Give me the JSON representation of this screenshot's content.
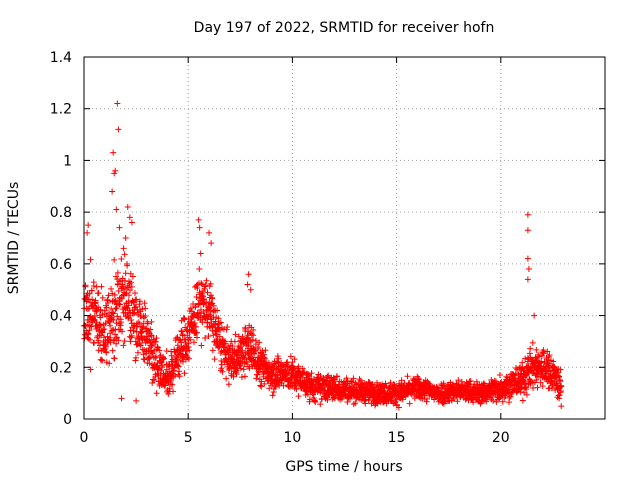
{
  "chart_data": {
    "type": "scatter",
    "title": "Day 197 of 2022, SRMTID for receiver hofn",
    "xlabel": "GPS time / hours",
    "ylabel": "SRMTID / TECUs",
    "xlim": [
      0,
      25
    ],
    "ylim": [
      0,
      1.4
    ],
    "x_ticks": [
      0,
      5,
      10,
      15,
      20
    ],
    "y_ticks": [
      0,
      0.2,
      0.4,
      0.6,
      0.8,
      1,
      1.2,
      1.4
    ],
    "x_tick_labels": [
      "0",
      "5",
      "10",
      "15",
      "20"
    ],
    "y_tick_labels": [
      "0",
      "0.2",
      "0.4",
      "0.6",
      "0.8",
      "1",
      "1.2",
      "1.4"
    ],
    "grid": true,
    "marker": "+",
    "color": "#ff0000",
    "series": [
      {
        "name": "SRMTID",
        "profile": [
          {
            "x": 0.0,
            "y": 0.42,
            "spread": 0.16
          },
          {
            "x": 0.5,
            "y": 0.4,
            "spread": 0.15
          },
          {
            "x": 1.0,
            "y": 0.33,
            "spread": 0.13
          },
          {
            "x": 1.5,
            "y": 0.4,
            "spread": 0.18
          },
          {
            "x": 2.0,
            "y": 0.5,
            "spread": 0.18
          },
          {
            "x": 2.5,
            "y": 0.38,
            "spread": 0.14
          },
          {
            "x": 3.0,
            "y": 0.32,
            "spread": 0.12
          },
          {
            "x": 3.5,
            "y": 0.22,
            "spread": 0.1
          },
          {
            "x": 4.0,
            "y": 0.15,
            "spread": 0.08
          },
          {
            "x": 4.5,
            "y": 0.25,
            "spread": 0.1
          },
          {
            "x": 5.0,
            "y": 0.32,
            "spread": 0.1
          },
          {
            "x": 5.5,
            "y": 0.45,
            "spread": 0.12
          },
          {
            "x": 6.0,
            "y": 0.42,
            "spread": 0.12
          },
          {
            "x": 6.5,
            "y": 0.3,
            "spread": 0.1
          },
          {
            "x": 7.0,
            "y": 0.22,
            "spread": 0.08
          },
          {
            "x": 7.5,
            "y": 0.25,
            "spread": 0.08
          },
          {
            "x": 8.0,
            "y": 0.28,
            "spread": 0.1
          },
          {
            "x": 8.5,
            "y": 0.2,
            "spread": 0.07
          },
          {
            "x": 9.0,
            "y": 0.18,
            "spread": 0.07
          },
          {
            "x": 10.0,
            "y": 0.17,
            "spread": 0.06
          },
          {
            "x": 11.0,
            "y": 0.12,
            "spread": 0.05
          },
          {
            "x": 12.0,
            "y": 0.12,
            "spread": 0.05
          },
          {
            "x": 13.0,
            "y": 0.11,
            "spread": 0.04
          },
          {
            "x": 14.0,
            "y": 0.1,
            "spread": 0.04
          },
          {
            "x": 15.0,
            "y": 0.1,
            "spread": 0.04
          },
          {
            "x": 16.0,
            "y": 0.12,
            "spread": 0.04
          },
          {
            "x": 17.0,
            "y": 0.1,
            "spread": 0.04
          },
          {
            "x": 18.0,
            "y": 0.11,
            "spread": 0.04
          },
          {
            "x": 19.0,
            "y": 0.1,
            "spread": 0.04
          },
          {
            "x": 20.0,
            "y": 0.12,
            "spread": 0.05
          },
          {
            "x": 21.0,
            "y": 0.15,
            "spread": 0.06
          },
          {
            "x": 21.5,
            "y": 0.2,
            "spread": 0.08
          },
          {
            "x": 22.0,
            "y": 0.2,
            "spread": 0.08
          },
          {
            "x": 22.5,
            "y": 0.18,
            "spread": 0.07
          },
          {
            "x": 22.9,
            "y": 0.12,
            "spread": 0.06
          }
        ],
        "outliers": [
          [
            1.6,
            1.22
          ],
          [
            1.65,
            1.12
          ],
          [
            1.4,
            1.03
          ],
          [
            1.5,
            0.96
          ],
          [
            1.45,
            0.95
          ],
          [
            1.35,
            0.88
          ],
          [
            1.55,
            0.81
          ],
          [
            2.1,
            0.82
          ],
          [
            2.2,
            0.78
          ],
          [
            2.3,
            0.76
          ],
          [
            0.2,
            0.75
          ],
          [
            0.15,
            0.72
          ],
          [
            1.7,
            0.74
          ],
          [
            2.0,
            0.7
          ],
          [
            1.9,
            0.66
          ],
          [
            5.5,
            0.77
          ],
          [
            5.55,
            0.74
          ],
          [
            6.0,
            0.72
          ],
          [
            6.1,
            0.68
          ],
          [
            5.6,
            0.64
          ],
          [
            7.9,
            0.56
          ],
          [
            7.85,
            0.52
          ],
          [
            8.0,
            0.5
          ],
          [
            21.3,
            0.79
          ],
          [
            21.3,
            0.73
          ],
          [
            21.3,
            0.62
          ],
          [
            21.35,
            0.58
          ],
          [
            21.3,
            0.54
          ],
          [
            21.6,
            0.4
          ],
          [
            22.9,
            0.05
          ],
          [
            22.8,
            0.08
          ],
          [
            2.5,
            0.07
          ],
          [
            1.8,
            0.08
          ]
        ]
      }
    ]
  }
}
